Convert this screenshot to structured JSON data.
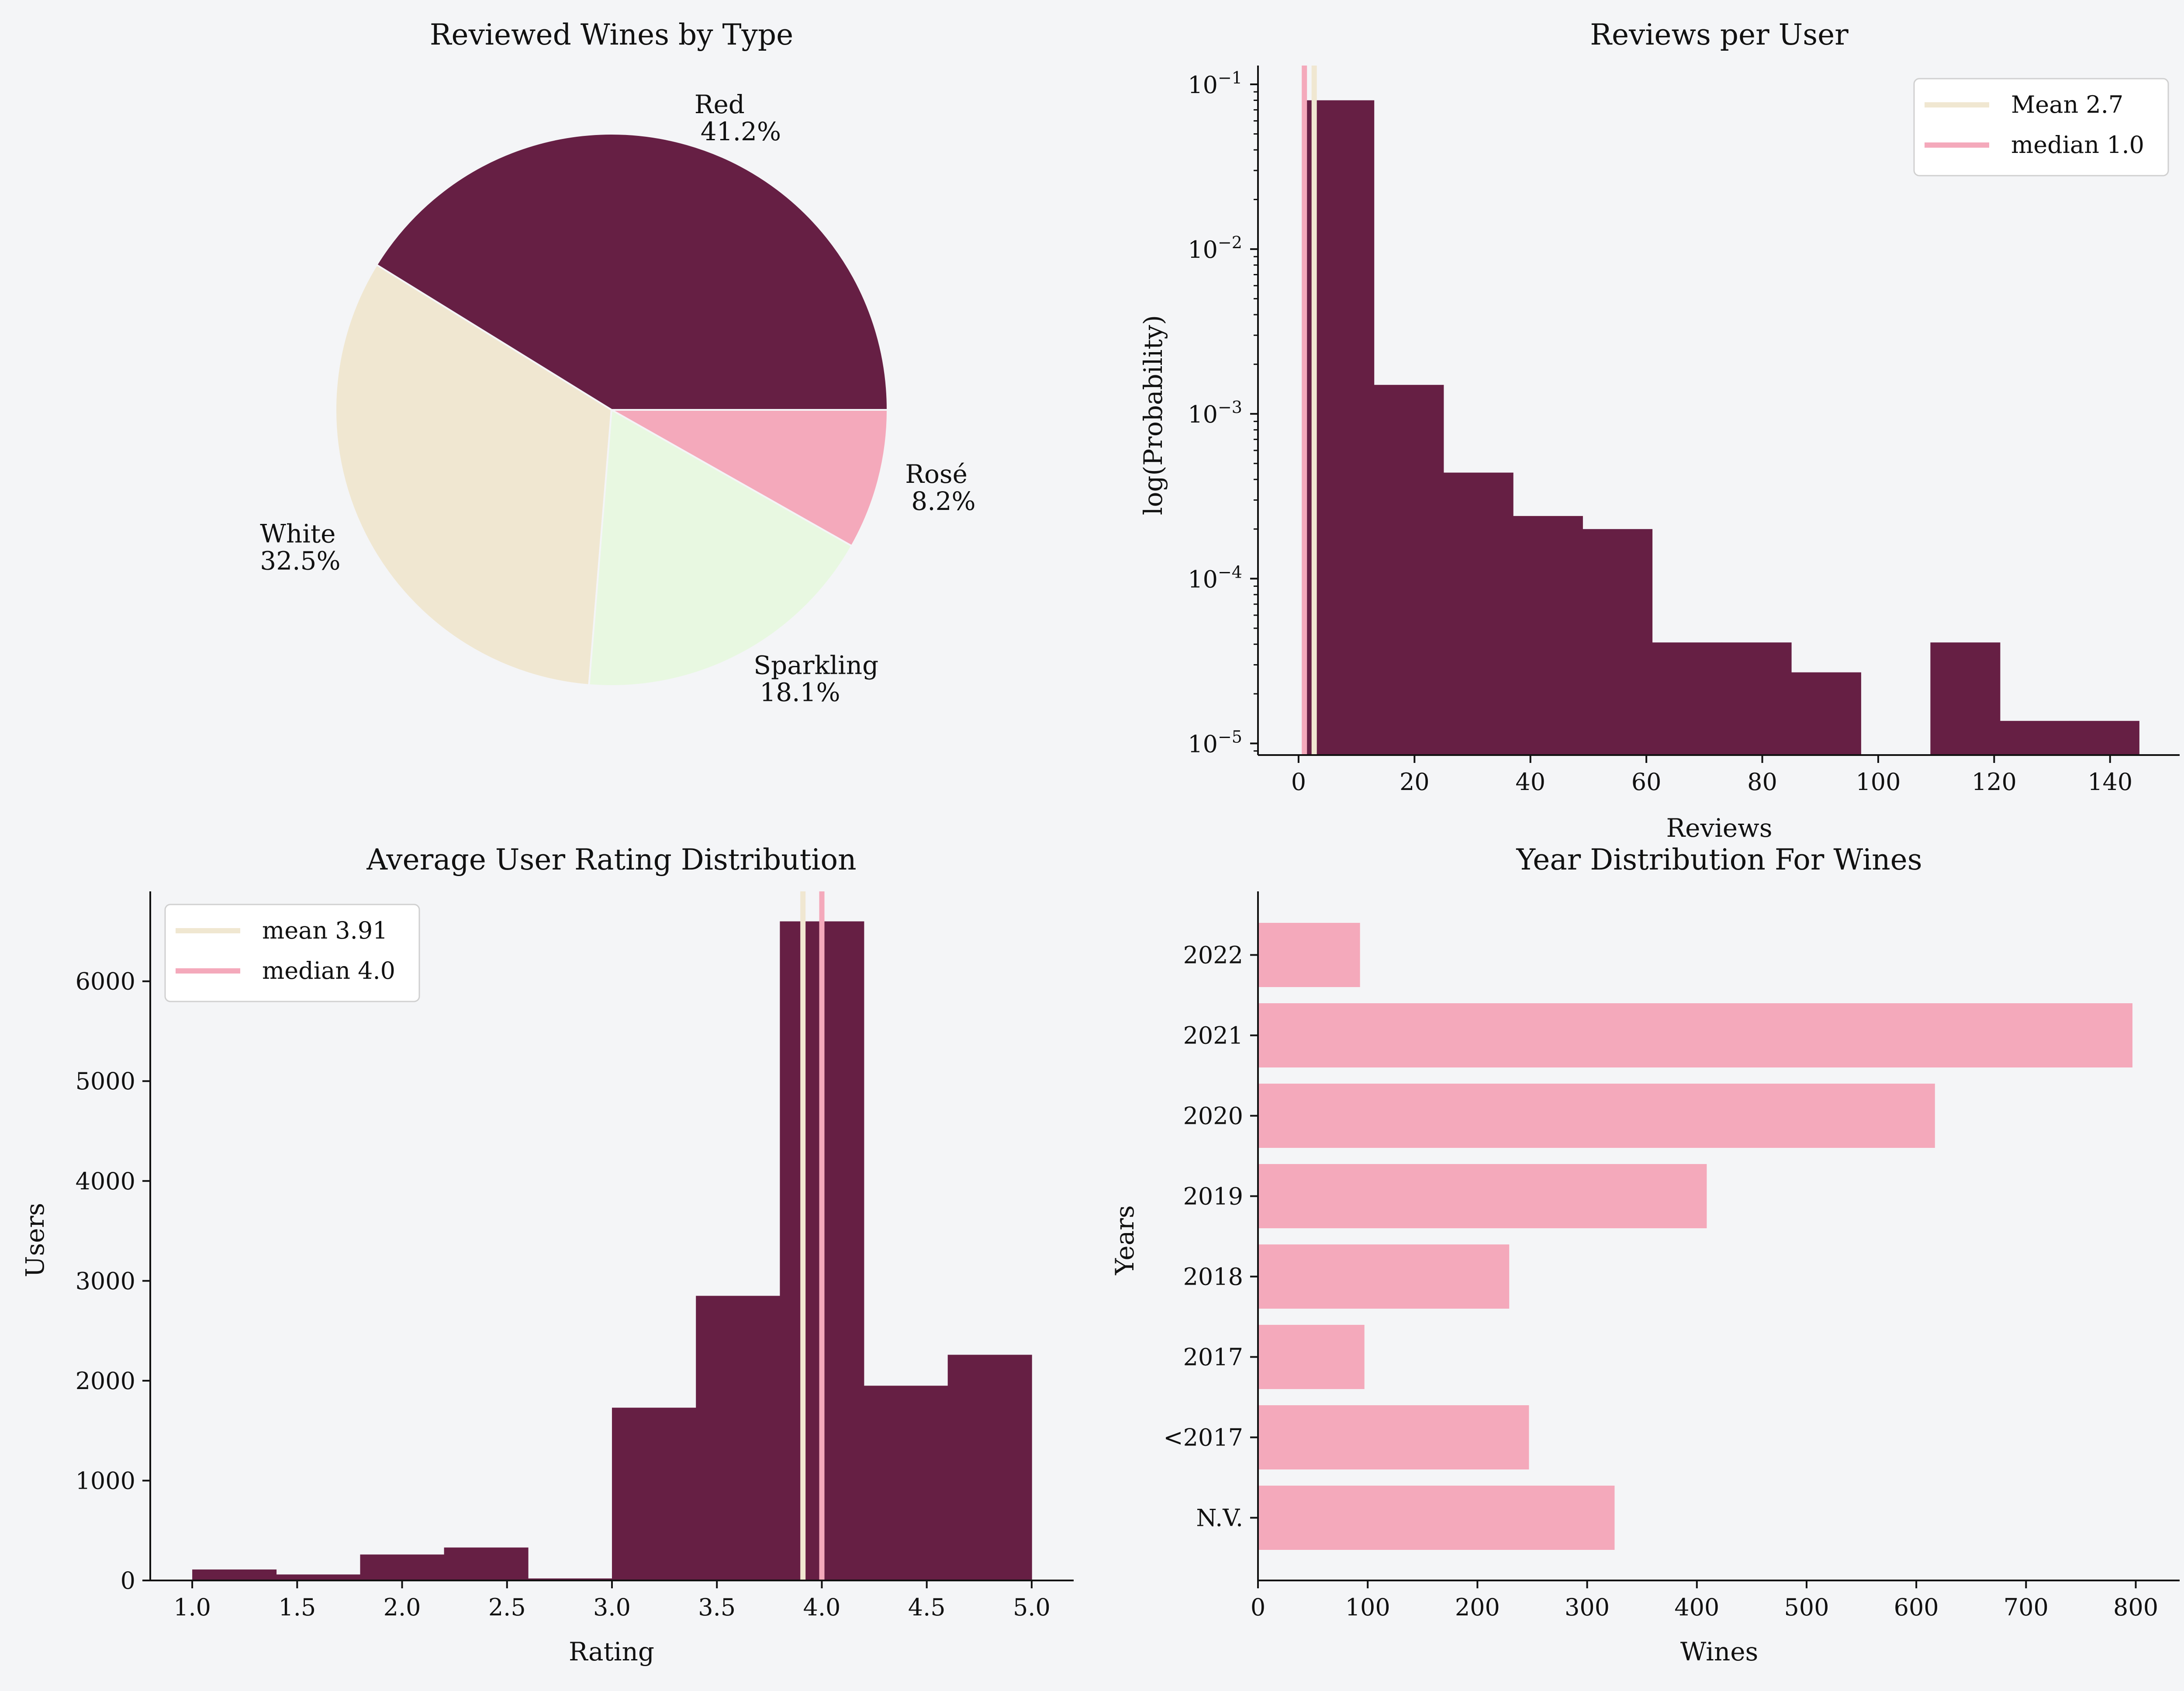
{
  "colors": {
    "background": "#f4f5f7",
    "wine": "#661f44",
    "cream": "#f0e7d1",
    "mint": "#e8f8e1",
    "pink": "#f4a9bb",
    "axis": "#111111"
  },
  "chart_data": [
    {
      "type": "pie",
      "title": "Reviewed Wines by Type",
      "slices": [
        {
          "label": "Red",
          "pct_label": "41.2%",
          "value": 41.2,
          "color": "#661f44"
        },
        {
          "label": "White",
          "pct_label": "32.5%",
          "value": 32.5,
          "color": "#f0e7d1"
        },
        {
          "label": "Sparkling",
          "pct_label": "18.1%",
          "value": 18.1,
          "color": "#e8f8e1"
        },
        {
          "label": "Rosé",
          "pct_label": "8.2%",
          "value": 8.2,
          "color": "#f4a9bb"
        }
      ]
    },
    {
      "type": "bar",
      "subtype": "histogram",
      "title": "Reviews per User",
      "xlabel": "Reviews",
      "ylabel": "log(Probability)",
      "yscale": "log",
      "xlim": [
        -7,
        152
      ],
      "ylim": [
        8.5e-06,
        0.13
      ],
      "xticks": [
        0,
        20,
        40,
        60,
        80,
        100,
        120,
        140
      ],
      "yticks": [
        {
          "value": 1e-05,
          "base": "10",
          "exp": "−5"
        },
        {
          "value": 0.0001,
          "base": "10",
          "exp": "−4"
        },
        {
          "value": 0.001,
          "base": "10",
          "exp": "−3"
        },
        {
          "value": 0.01,
          "base": "10",
          "exp": "−2"
        },
        {
          "value": 0.1,
          "base": "10",
          "exp": "−1"
        }
      ],
      "bins": [
        {
          "x0": 1,
          "x1": 13,
          "y": 0.08
        },
        {
          "x0": 13,
          "x1": 25,
          "y": 0.0015
        },
        {
          "x0": 25,
          "x1": 37,
          "y": 0.00044
        },
        {
          "x0": 37,
          "x1": 49,
          "y": 0.00024
        },
        {
          "x0": 49,
          "x1": 61,
          "y": 0.0002
        },
        {
          "x0": 61,
          "x1": 73,
          "y": 4.1e-05
        },
        {
          "x0": 73,
          "x1": 85,
          "y": 4.1e-05
        },
        {
          "x0": 85,
          "x1": 97,
          "y": 2.7e-05
        },
        {
          "x0": 97,
          "x1": 109,
          "y": 0
        },
        {
          "x0": 109,
          "x1": 121,
          "y": 4.1e-05
        },
        {
          "x0": 121,
          "x1": 133,
          "y": 1.37e-05
        },
        {
          "x0": 133,
          "x1": 145,
          "y": 1.37e-05
        }
      ],
      "vlines": [
        {
          "name": "Mean 2.7",
          "x": 2.7,
          "color": "#f0e7d1"
        },
        {
          "name": "median 1.0",
          "x": 1.0,
          "color": "#f4a9bb"
        }
      ],
      "legend": "top-right",
      "grid": false
    },
    {
      "type": "bar",
      "subtype": "histogram",
      "title": "Average User Rating Distribution",
      "xlabel": "Rating",
      "ylabel": "Users",
      "xlim": [
        0.8,
        5.2
      ],
      "ylim": [
        0,
        6900
      ],
      "xticks": [
        "1.0",
        "1.5",
        "2.0",
        "2.5",
        "3.0",
        "3.5",
        "4.0",
        "4.5",
        "5.0"
      ],
      "yticks": [
        0,
        1000,
        2000,
        3000,
        4000,
        5000,
        6000
      ],
      "bins": [
        {
          "x0": 1.0,
          "x1": 1.4,
          "y": 110
        },
        {
          "x0": 1.4,
          "x1": 1.8,
          "y": 60
        },
        {
          "x0": 1.8,
          "x1": 2.2,
          "y": 260
        },
        {
          "x0": 2.2,
          "x1": 2.6,
          "y": 330
        },
        {
          "x0": 2.6,
          "x1": 3.0,
          "y": 20
        },
        {
          "x0": 3.0,
          "x1": 3.4,
          "y": 1730
        },
        {
          "x0": 3.4,
          "x1": 3.8,
          "y": 2850
        },
        {
          "x0": 3.8,
          "x1": 4.2,
          "y": 6600
        },
        {
          "x0": 4.2,
          "x1": 4.6,
          "y": 1950
        },
        {
          "x0": 4.6,
          "x1": 5.0,
          "y": 2260
        }
      ],
      "vlines": [
        {
          "name": "mean 3.91",
          "x": 3.91,
          "color": "#f0e7d1"
        },
        {
          "name": "median 4.0",
          "x": 4.0,
          "color": "#f4a9bb"
        }
      ],
      "legend": "top-left",
      "grid": false
    },
    {
      "type": "bar",
      "orientation": "horizontal",
      "title": "Year Distribution For Wines",
      "xlabel": "Wines",
      "ylabel": "Years",
      "xlim": [
        0,
        840
      ],
      "xticks": [
        0,
        100,
        200,
        300,
        400,
        500,
        600,
        700,
        800
      ],
      "categories": [
        "2022",
        "2021",
        "2020",
        "2019",
        "2018",
        "2017",
        "<2017",
        "N.V."
      ],
      "values": [
        93,
        797,
        617,
        409,
        229,
        97,
        247,
        325
      ],
      "color": "#f4a9bb",
      "grid": false
    }
  ]
}
